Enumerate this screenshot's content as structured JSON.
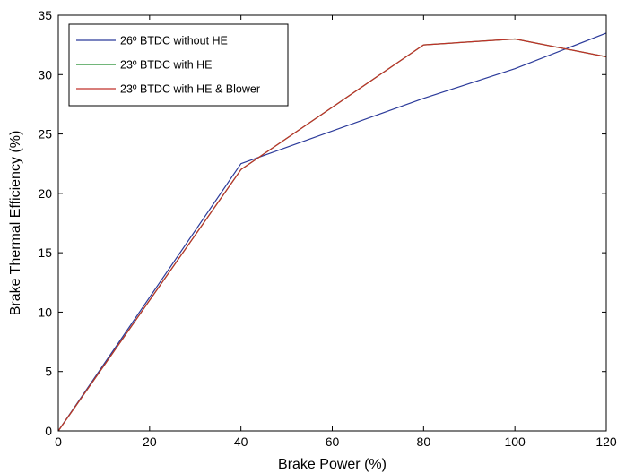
{
  "chart_data": {
    "type": "line",
    "xlabel": "Brake Power (%)",
    "ylabel": "Brake Thermal Efficiency (%)",
    "xlim": [
      0,
      120
    ],
    "ylim": [
      0,
      35
    ],
    "xticks": [
      0,
      20,
      40,
      60,
      80,
      100,
      120
    ],
    "yticks": [
      0,
      5,
      10,
      15,
      20,
      25,
      30,
      35
    ],
    "grid": false,
    "legend_position": "top-left",
    "series": [
      {
        "name": "26º  BTDC without HE",
        "color": "#2b3a9a",
        "x": [
          0,
          40,
          80,
          100,
          120
        ],
        "y": [
          0,
          22.5,
          28,
          30.5,
          33.5
        ]
      },
      {
        "name": "23º  BTDC with HE",
        "color": "#1f8a2a",
        "x": [
          0,
          40,
          80,
          100,
          120
        ],
        "y": [
          0,
          22,
          32.5,
          33,
          31.5
        ]
      },
      {
        "name": "23º  BTDC with HE & Blower",
        "color": "#c0302a",
        "x": [
          0,
          40,
          80,
          100,
          120
        ],
        "y": [
          0,
          22,
          32.5,
          33,
          31.5
        ]
      }
    ]
  }
}
